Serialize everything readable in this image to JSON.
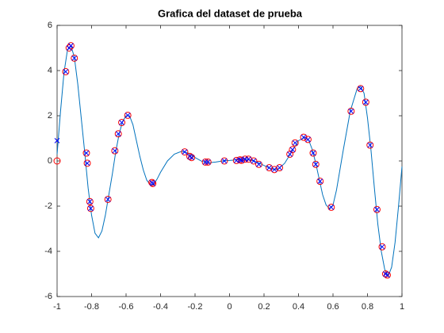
{
  "chart_data": {
    "type": "line",
    "title": "Grafica del dataset de prueba",
    "xlim": [
      -1,
      1
    ],
    "xticks": [
      -1,
      -0.8,
      -0.6,
      -0.4,
      -0.2,
      0,
      0.2,
      0.4,
      0.6,
      0.8,
      1
    ],
    "ylim": [
      -6,
      6
    ],
    "yticks": [
      -6,
      -4,
      -2,
      0,
      2,
      4,
      6
    ],
    "grid": false,
    "series": [
      {
        "type": "line",
        "color": "#0072bd",
        "x": [
          -1,
          -0.98,
          -0.96,
          -0.94,
          -0.92,
          -0.9,
          -0.88,
          -0.86,
          -0.84,
          -0.82,
          -0.8,
          -0.78,
          -0.76,
          -0.74,
          -0.72,
          -0.7,
          -0.68,
          -0.66,
          -0.64,
          -0.62,
          -0.6,
          -0.58,
          -0.56,
          -0.54,
          -0.52,
          -0.5,
          -0.48,
          -0.46,
          -0.44,
          -0.42,
          -0.4,
          -0.36,
          -0.32,
          -0.28,
          -0.24,
          -0.2,
          -0.16,
          -0.12,
          -0.08,
          -0.04,
          0,
          0.04,
          0.08,
          0.12,
          0.16,
          0.2,
          0.24,
          0.28,
          0.32,
          0.36,
          0.4,
          0.44,
          0.46,
          0.48,
          0.5,
          0.52,
          0.54,
          0.56,
          0.58,
          0.6,
          0.62,
          0.66,
          0.7,
          0.74,
          0.76,
          0.78,
          0.8,
          0.82,
          0.84,
          0.86,
          0.88,
          0.9,
          0.92,
          0.94,
          0.96,
          0.98,
          1
        ],
        "values": [
          0.3,
          2.2,
          3.9,
          4.9,
          5.1,
          4.6,
          3.4,
          1.9,
          0.4,
          -1.2,
          -2.4,
          -3.2,
          -3.4,
          -3.1,
          -2.4,
          -1.5,
          -0.6,
          0.4,
          1.2,
          1.75,
          2.0,
          2.0,
          1.6,
          0.9,
          0.2,
          -0.4,
          -0.85,
          -1.05,
          -1.05,
          -0.8,
          -0.5,
          0.0,
          0.3,
          0.42,
          0.35,
          0.15,
          -0.02,
          -0.08,
          -0.05,
          0.0,
          0.02,
          0.05,
          0.08,
          0.05,
          -0.05,
          -0.2,
          -0.35,
          -0.38,
          -0.1,
          0.4,
          0.9,
          1.05,
          0.9,
          0.5,
          -0.1,
          -0.8,
          -1.5,
          -1.95,
          -2.1,
          -1.95,
          -1.3,
          0.5,
          2.2,
          3.2,
          3.3,
          3.0,
          1.9,
          0.5,
          -1.2,
          -2.8,
          -4.0,
          -4.8,
          -5.1,
          -4.7,
          -3.6,
          -2.0,
          -0.25
        ]
      },
      {
        "type": "scatter",
        "marker": "o",
        "color": "#ff0000",
        "x": [
          -1,
          -0.95,
          -0.93,
          -0.92,
          -0.9,
          -0.83,
          -0.825,
          -0.81,
          -0.805,
          -0.705,
          -0.665,
          -0.645,
          -0.625,
          -0.59,
          -0.45,
          -0.445,
          -0.26,
          -0.23,
          -0.22,
          -0.14,
          -0.125,
          -0.03,
          0.04,
          0.06,
          0.07,
          0.09,
          0.11,
          0.14,
          0.17,
          0.23,
          0.26,
          0.29,
          0.35,
          0.365,
          0.38,
          0.43,
          0.455,
          0.485,
          0.5,
          0.525,
          0.59,
          0.705,
          0.76,
          0.79,
          0.815,
          0.855,
          0.885,
          0.905,
          0.915
        ],
        "values": [
          0,
          3.95,
          5.0,
          5.1,
          4.55,
          0.35,
          -0.1,
          -1.8,
          -2.1,
          -1.7,
          0.45,
          1.2,
          1.7,
          2.02,
          -0.95,
          -1.0,
          0.4,
          0.2,
          0.15,
          -0.05,
          -0.05,
          0.0,
          0.02,
          0.05,
          0.03,
          0.08,
          0.08,
          0.0,
          -0.15,
          -0.3,
          -0.38,
          -0.3,
          0.3,
          0.5,
          0.8,
          1.05,
          0.95,
          0.35,
          -0.15,
          -0.9,
          -2.05,
          2.2,
          3.2,
          2.6,
          0.7,
          -2.15,
          -3.8,
          -5.0,
          -5.05
        ]
      },
      {
        "type": "scatter",
        "marker": "x",
        "color": "#0000ff",
        "x": [
          -1,
          -0.95,
          -0.93,
          -0.92,
          -0.9,
          -0.83,
          -0.825,
          -0.81,
          -0.805,
          -0.705,
          -0.665,
          -0.645,
          -0.625,
          -0.59,
          -0.45,
          -0.445,
          -0.26,
          -0.23,
          -0.22,
          -0.14,
          -0.125,
          -0.03,
          0.04,
          0.06,
          0.07,
          0.09,
          0.11,
          0.14,
          0.17,
          0.23,
          0.26,
          0.29,
          0.35,
          0.365,
          0.38,
          0.43,
          0.455,
          0.485,
          0.5,
          0.525,
          0.59,
          0.705,
          0.76,
          0.79,
          0.815,
          0.855,
          0.885,
          0.905,
          0.915
        ],
        "values": [
          0.9,
          3.95,
          5.0,
          5.1,
          4.55,
          0.35,
          -0.1,
          -1.8,
          -2.1,
          -1.7,
          0.45,
          1.2,
          1.7,
          2.02,
          -0.95,
          -1.0,
          0.4,
          0.2,
          0.15,
          -0.05,
          -0.05,
          0.0,
          0.02,
          0.05,
          0.03,
          0.08,
          0.08,
          0.0,
          -0.15,
          -0.3,
          -0.38,
          -0.3,
          0.3,
          0.5,
          0.8,
          1.05,
          0.95,
          0.35,
          -0.15,
          -0.9,
          -2.05,
          2.2,
          3.2,
          2.6,
          0.7,
          -2.15,
          -3.8,
          -5.0,
          -5.05
        ]
      }
    ]
  }
}
